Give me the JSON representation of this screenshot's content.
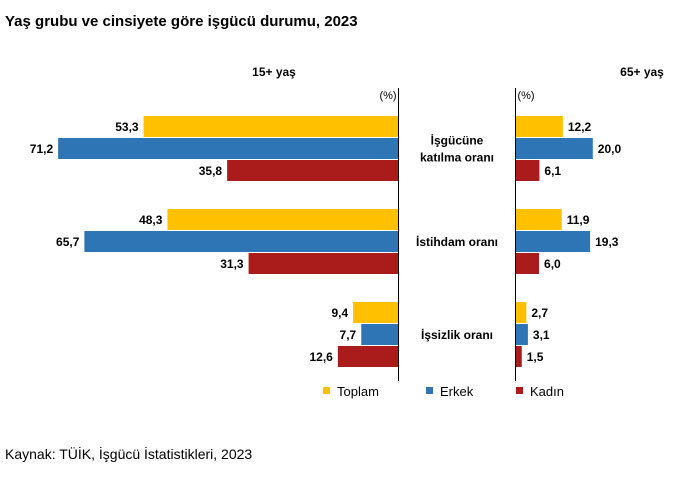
{
  "title": "Yaş grubu ve cinsiyete göre işgücü durumu, 2023",
  "source": "Kaynak: TÜİK, İşgücü İstatistikleri, 2023",
  "chart_data": {
    "type": "bar",
    "orientation": "horizontal",
    "unit_label": "(%)",
    "categories": [
      {
        "lines": [
          "İşgücüne",
          "katılma oranı"
        ]
      },
      {
        "lines": [
          "İstihdam oranı"
        ]
      },
      {
        "lines": [
          "İşsizlik oranı"
        ]
      }
    ],
    "legend": [
      {
        "name": "Toplam",
        "color": "#FFC000"
      },
      {
        "name": "Erkek",
        "color": "#2E75B6"
      },
      {
        "name": "Kadın",
        "color": "#AA1C1C"
      }
    ],
    "panels": [
      {
        "title": "15+ yaş",
        "direction": "left",
        "xmax": 75,
        "values": [
          [
            53.3,
            71.2,
            35.8
          ],
          [
            48.3,
            65.7,
            31.3
          ],
          [
            9.4,
            7.7,
            12.6
          ]
        ],
        "labels": [
          [
            "53,3",
            "71,2",
            "35,8"
          ],
          [
            "48,3",
            "65,7",
            "31,3"
          ],
          [
            "9,4",
            "7,7",
            "12,6"
          ]
        ]
      },
      {
        "title": "65+ yaş",
        "direction": "right",
        "xmax": 25,
        "values": [
          [
            12.2,
            20.0,
            6.1
          ],
          [
            11.9,
            19.3,
            6.0
          ],
          [
            2.7,
            3.1,
            1.5
          ]
        ],
        "labels": [
          [
            "12,2",
            "20,0",
            "6,1"
          ],
          [
            "11,9",
            "19,3",
            "6,0"
          ],
          [
            "2,7",
            "3,1",
            "1,5"
          ]
        ]
      }
    ]
  }
}
